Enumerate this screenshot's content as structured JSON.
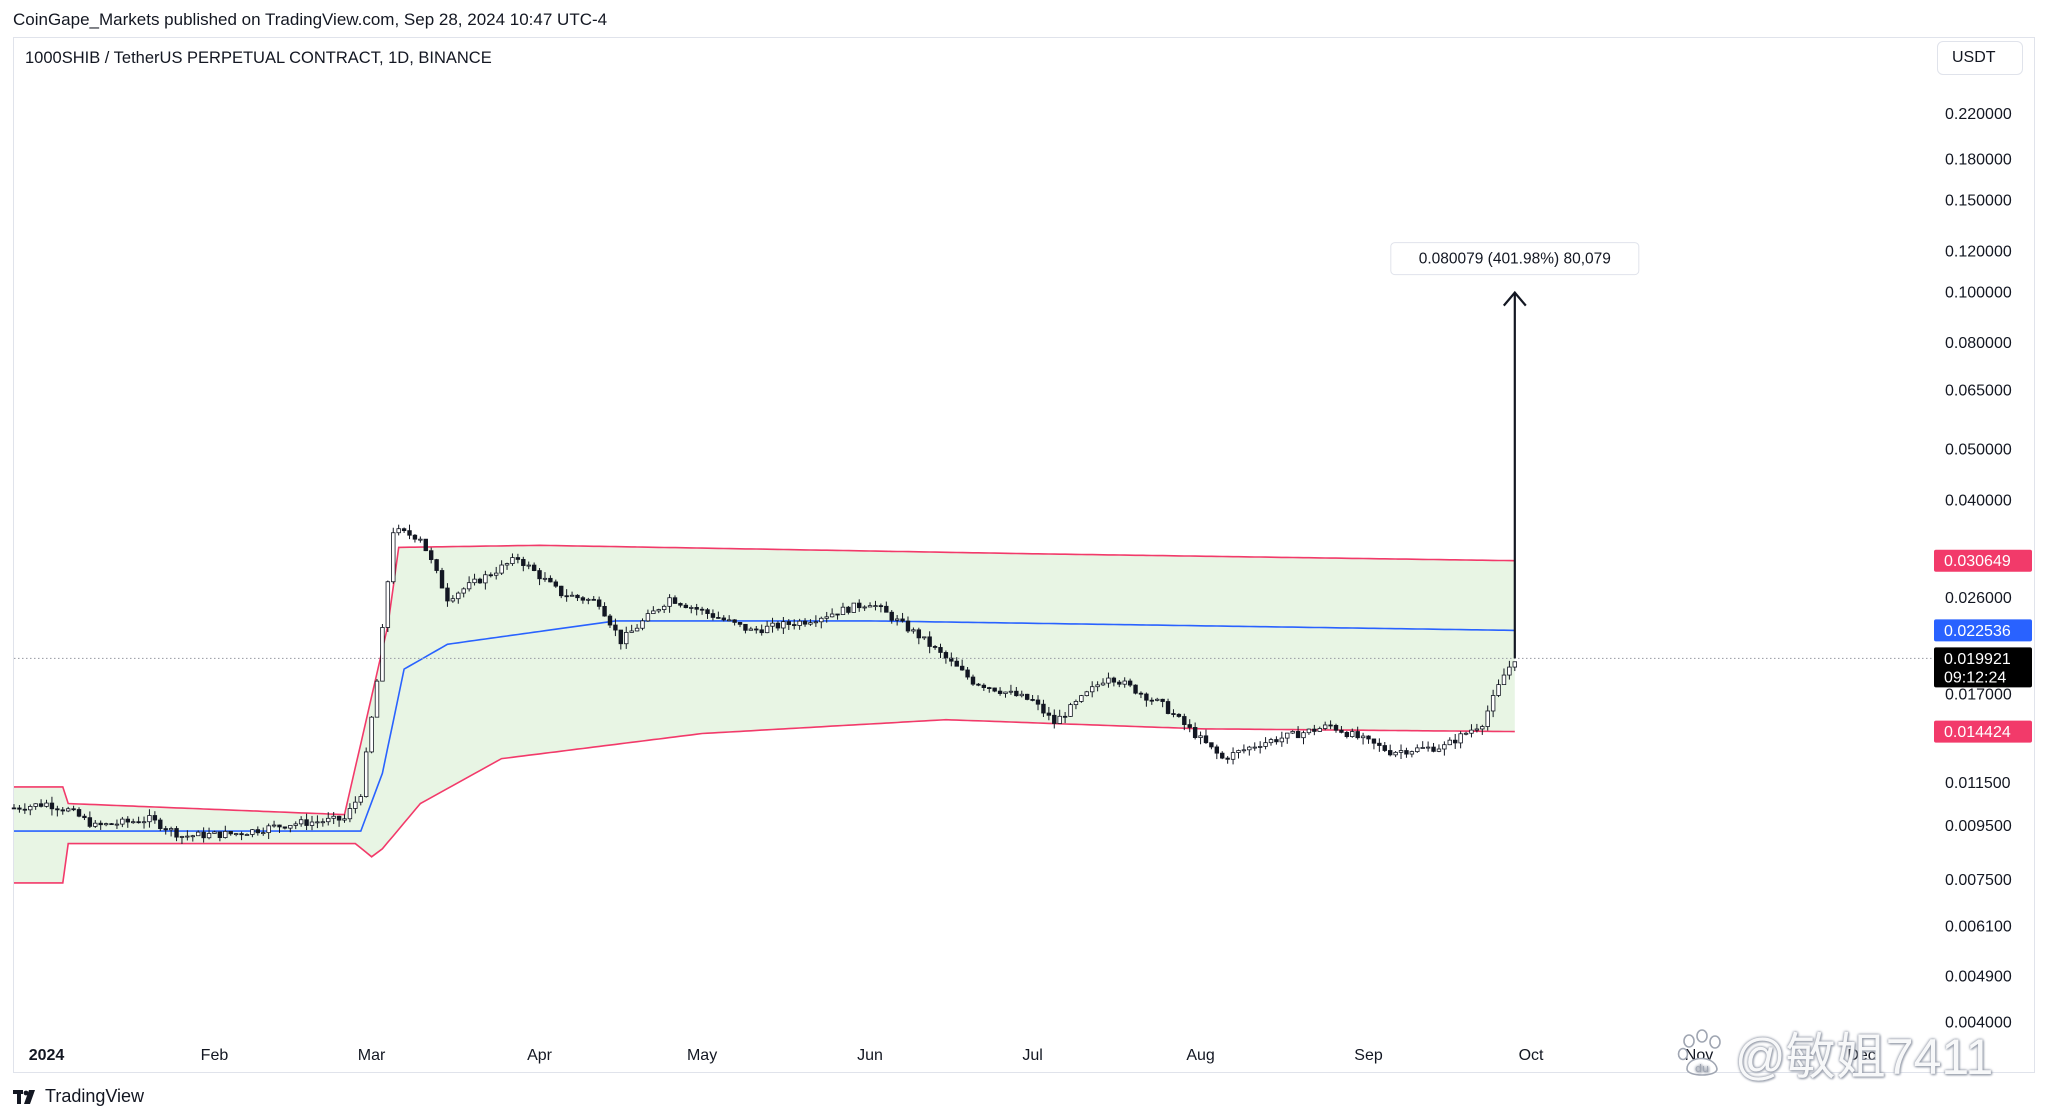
{
  "header": {
    "credit": "CoinGape_Markets published on TradingView.com, Sep 28, 2024 10:47 UTC-4",
    "symbol": "1000SHIB / TetherUS PERPETUAL CONTRACT, 1D, BINANCE",
    "currency": "USDT"
  },
  "footer": {
    "brand": "TradingView",
    "watermark": "@敏姐7411"
  },
  "colors": {
    "upper_band": "#f23a6a",
    "middle_band": "#2962ff",
    "lower_band": "#f23a6a",
    "band_fill": "#e8f5e4",
    "candle": "#131722",
    "arrow": "#131722",
    "last_price_bg": "#000000",
    "crosshair": "#9598a1"
  },
  "chart_data": {
    "type": "candlestick",
    "title": "1000SHIB / TetherUS PERPETUAL CONTRACT, 1D, BINANCE",
    "y_scale": "log",
    "y_unit": "USDT",
    "ylim": [
      0.0037,
      0.26
    ],
    "y_ticks": [
      "0.220000",
      "0.180000",
      "0.150000",
      "0.120000",
      "0.100000",
      "0.080000",
      "0.065000",
      "0.050000",
      "0.040000",
      "0.026000",
      "0.017000",
      "0.011500",
      "0.009500",
      "0.007500",
      "0.006100",
      "0.004900",
      "0.004000"
    ],
    "x_ticks": [
      "2024",
      "Feb",
      "Mar",
      "Apr",
      "May",
      "Jun",
      "Jul",
      "Aug",
      "Sep",
      "Oct",
      "Nov",
      "Dec"
    ],
    "x_range": [
      "2023-12-26",
      "2024-12-14"
    ],
    "grid": false,
    "price_labels": [
      {
        "name": "upper_band",
        "value": "0.030649"
      },
      {
        "name": "middle_band",
        "value": "0.022536"
      },
      {
        "name": "last_price",
        "value": "0.019921",
        "countdown": "09:12:24"
      },
      {
        "name": "lower_band",
        "value": "0.014424"
      }
    ],
    "measurement": {
      "label": "0.080079 (401.98%) 80,079",
      "from_date": "2024-09-28",
      "from_price": 0.019921,
      "to_price": 0.1
    },
    "bands": {
      "upper": [
        {
          "date": "2023-12-26",
          "value": 0.0113
        },
        {
          "date": "2024-01-04",
          "value": 0.0113
        },
        {
          "date": "2024-01-05",
          "value": 0.0105
        },
        {
          "date": "2024-02-25",
          "value": 0.01
        },
        {
          "date": "2024-03-04",
          "value": 0.023
        },
        {
          "date": "2024-03-06",
          "value": 0.0325
        },
        {
          "date": "2024-04-01",
          "value": 0.0328
        },
        {
          "date": "2024-07-01",
          "value": 0.0316
        },
        {
          "date": "2024-09-28",
          "value": 0.030649
        }
      ],
      "middle": [
        {
          "date": "2023-12-26",
          "value": 0.0093
        },
        {
          "date": "2024-02-28",
          "value": 0.0093
        },
        {
          "date": "2024-03-03",
          "value": 0.012
        },
        {
          "date": "2024-03-07",
          "value": 0.019
        },
        {
          "date": "2024-03-15",
          "value": 0.0212
        },
        {
          "date": "2024-04-15",
          "value": 0.0235
        },
        {
          "date": "2024-06-01",
          "value": 0.0235
        },
        {
          "date": "2024-09-28",
          "value": 0.022536
        }
      ],
      "lower": [
        {
          "date": "2023-12-26",
          "value": 0.0074
        },
        {
          "date": "2024-01-04",
          "value": 0.0074
        },
        {
          "date": "2024-01-05",
          "value": 0.0088
        },
        {
          "date": "2024-02-27",
          "value": 0.0088
        },
        {
          "date": "2024-03-01",
          "value": 0.0083
        },
        {
          "date": "2024-03-03",
          "value": 0.0086
        },
        {
          "date": "2024-03-10",
          "value": 0.0105
        },
        {
          "date": "2024-03-25",
          "value": 0.0128
        },
        {
          "date": "2024-05-01",
          "value": 0.0143
        },
        {
          "date": "2024-06-15",
          "value": 0.0152
        },
        {
          "date": "2024-08-01",
          "value": 0.0146
        },
        {
          "date": "2024-09-28",
          "value": 0.014424
        }
      ]
    },
    "candle_close_path": [
      {
        "date": "2023-12-26",
        "value": 0.0103
      },
      {
        "date": "2024-01-01",
        "value": 0.0105
      },
      {
        "date": "2024-01-05",
        "value": 0.0102
      },
      {
        "date": "2024-01-10",
        "value": 0.0095
      },
      {
        "date": "2024-01-20",
        "value": 0.0098
      },
      {
        "date": "2024-01-26",
        "value": 0.0091
      },
      {
        "date": "2024-02-05",
        "value": 0.0092
      },
      {
        "date": "2024-02-15",
        "value": 0.0096
      },
      {
        "date": "2024-02-25",
        "value": 0.0098
      },
      {
        "date": "2024-02-28",
        "value": 0.011
      },
      {
        "date": "2024-03-02",
        "value": 0.018
      },
      {
        "date": "2024-03-05",
        "value": 0.035
      },
      {
        "date": "2024-03-10",
        "value": 0.034
      },
      {
        "date": "2024-03-15",
        "value": 0.026
      },
      {
        "date": "2024-03-28",
        "value": 0.031
      },
      {
        "date": "2024-04-05",
        "value": 0.0265
      },
      {
        "date": "2024-04-12",
        "value": 0.0255
      },
      {
        "date": "2024-04-16",
        "value": 0.0215
      },
      {
        "date": "2024-04-25",
        "value": 0.026
      },
      {
        "date": "2024-05-10",
        "value": 0.0225
      },
      {
        "date": "2024-05-20",
        "value": 0.0235
      },
      {
        "date": "2024-06-01",
        "value": 0.0255
      },
      {
        "date": "2024-06-10",
        "value": 0.022
      },
      {
        "date": "2024-06-20",
        "value": 0.018
      },
      {
        "date": "2024-07-01",
        "value": 0.0165
      },
      {
        "date": "2024-07-05",
        "value": 0.015
      },
      {
        "date": "2024-07-15",
        "value": 0.0185
      },
      {
        "date": "2024-07-25",
        "value": 0.0162
      },
      {
        "date": "2024-08-05",
        "value": 0.0128
      },
      {
        "date": "2024-08-12",
        "value": 0.0137
      },
      {
        "date": "2024-08-25",
        "value": 0.0148
      },
      {
        "date": "2024-09-05",
        "value": 0.0132
      },
      {
        "date": "2024-09-15",
        "value": 0.0135
      },
      {
        "date": "2024-09-22",
        "value": 0.015
      },
      {
        "date": "2024-09-26",
        "value": 0.0185
      },
      {
        "date": "2024-09-28",
        "value": 0.019921
      }
    ]
  }
}
